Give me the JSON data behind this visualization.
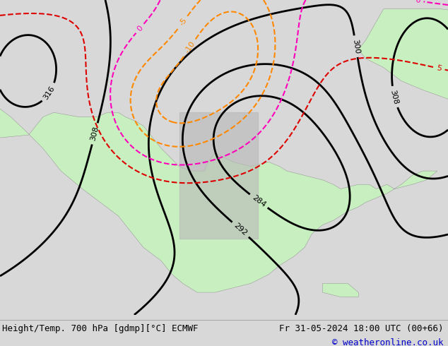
{
  "title_left": "Height/Temp. 700 hPa [gdmp][°C] ECMWF",
  "title_right": "Fr 31-05-2024 18:00 UTC (00+66)",
  "copyright": "© weatheronline.co.uk",
  "bg_color": "#d8d8d8",
  "land_color_green": "#c8efc0",
  "land_color_gray": "#b8b8b8",
  "sea_color": "#e8e8e8",
  "height_contour_color": "#000000",
  "temp_contour_color_orange": "#ff8800",
  "temp_contour_color_red": "#dd0000",
  "temp_contour_color_pink": "#ff00bb",
  "footer_fontsize": 9,
  "footer_color": "#000000",
  "copyright_color": "#0000cc",
  "xlim": [
    -175,
    -50
  ],
  "ylim": [
    15,
    85
  ]
}
